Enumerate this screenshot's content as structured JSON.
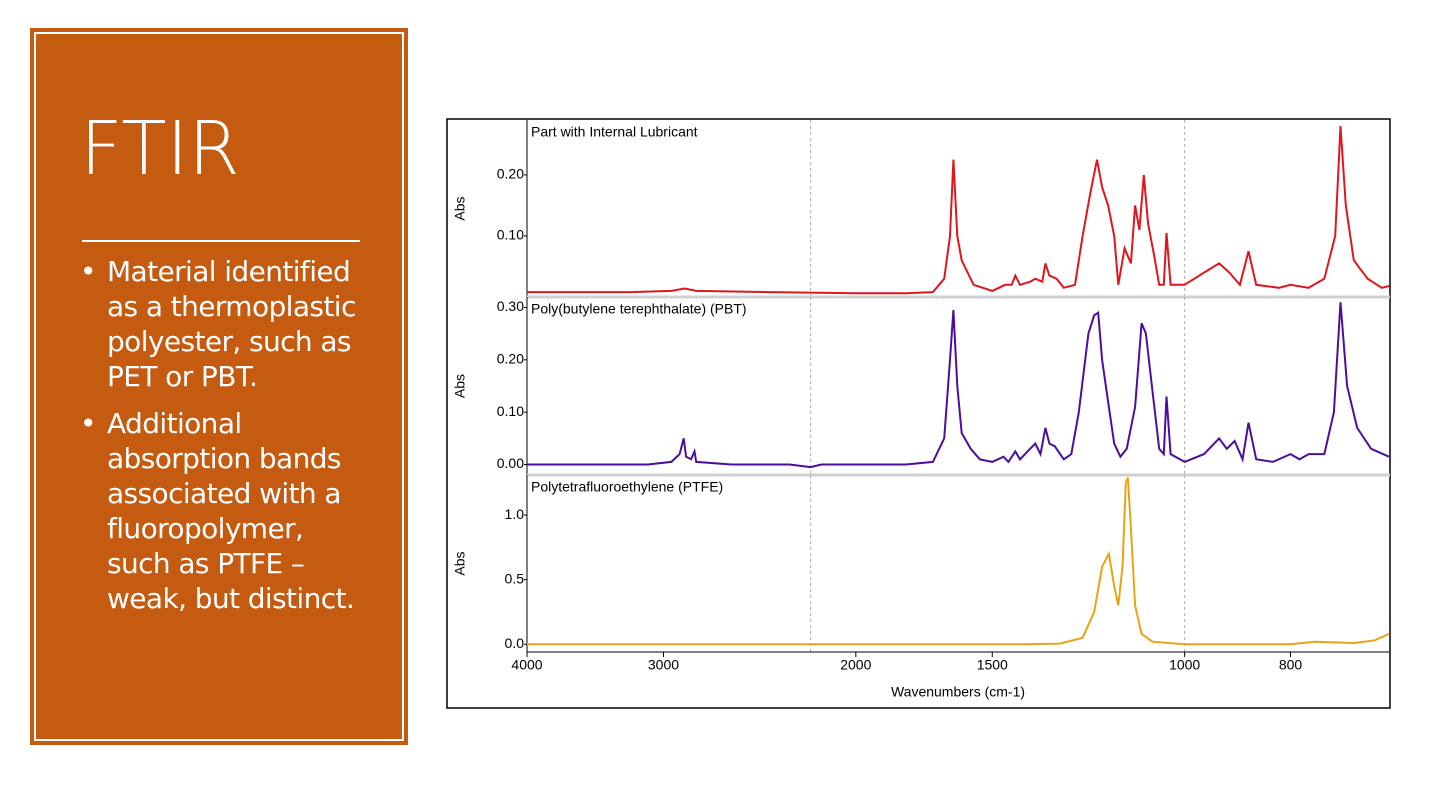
{
  "slide": {
    "title": "FTIR",
    "bullets": [
      "Material identified as a thermoplastic polyester, such as PET or PBT.",
      "Additional absorption bands associated with a fluoropolymer, such as PTFE – weak, but distinct."
    ]
  },
  "chart_data": [
    {
      "type": "line",
      "title": "Part with Internal Lubricant",
      "ylabel": "Abs",
      "xscale": "log",
      "xlim": [
        4000,
        650
      ],
      "ylim": [
        0,
        0.29
      ],
      "yticks": [
        {
          "value": 0.1,
          "label": "0.10"
        },
        {
          "value": 0.2,
          "label": "0.20"
        }
      ],
      "vlines": [
        2200,
        1000
      ],
      "x": [
        4000,
        3200,
        2950,
        2869,
        2800,
        2400,
        2000,
        1800,
        1700,
        1660,
        1640,
        1628,
        1615,
        1600,
        1580,
        1560,
        1500,
        1460,
        1440,
        1429,
        1415,
        1385,
        1370,
        1350,
        1341,
        1330,
        1310,
        1290,
        1260,
        1240,
        1220,
        1203,
        1190,
        1175,
        1160,
        1150,
        1135,
        1120,
        1110,
        1100,
        1090,
        1080,
        1067,
        1055,
        1045,
        1039,
        1030,
        1000,
        960,
        930,
        910,
        890,
        874,
        860,
        820,
        800,
        770,
        745,
        728,
        720,
        712,
        700,
        680,
        660,
        650
      ],
      "series": [
        {
          "color": "#e0161d",
          "values": [
            0.008,
            0.008,
            0.01,
            0.014,
            0.01,
            0.008,
            0.006,
            0.006,
            0.008,
            0.03,
            0.1,
            0.225,
            0.1,
            0.06,
            0.04,
            0.02,
            0.01,
            0.02,
            0.02,
            0.035,
            0.02,
            0.025,
            0.03,
            0.025,
            0.055,
            0.035,
            0.03,
            0.015,
            0.02,
            0.1,
            0.17,
            0.225,
            0.18,
            0.15,
            0.1,
            0.02,
            0.08,
            0.055,
            0.15,
            0.11,
            0.2,
            0.12,
            0.07,
            0.02,
            0.02,
            0.105,
            0.02,
            0.02,
            0.04,
            0.055,
            0.04,
            0.02,
            0.075,
            0.02,
            0.015,
            0.02,
            0.015,
            0.03,
            0.1,
            0.28,
            0.15,
            0.06,
            0.03,
            0.015,
            0.018
          ]
        }
      ]
    },
    {
      "type": "line",
      "title": "Poly(butylene terephthalate) (PBT)",
      "ylabel": "Abs",
      "xscale": "log",
      "xlim": [
        4000,
        650
      ],
      "ylim": [
        -0.02,
        0.32
      ],
      "yticks": [
        {
          "value": 0,
          "label": "0.00"
        },
        {
          "value": 0.1,
          "label": "0.10"
        },
        {
          "value": 0.2,
          "label": "0.20"
        },
        {
          "value": 0.3,
          "label": "0.30"
        }
      ],
      "vlines": [
        2200,
        1000
      ],
      "x": [
        4000,
        3100,
        2950,
        2900,
        2875,
        2860,
        2830,
        2810,
        2800,
        2600,
        2300,
        2200,
        2150,
        1800,
        1700,
        1660,
        1640,
        1628,
        1615,
        1600,
        1570,
        1540,
        1500,
        1465,
        1450,
        1429,
        1415,
        1385,
        1370,
        1355,
        1341,
        1330,
        1315,
        1290,
        1270,
        1250,
        1225,
        1210,
        1200,
        1190,
        1175,
        1160,
        1145,
        1130,
        1110,
        1095,
        1085,
        1070,
        1055,
        1045,
        1039,
        1030,
        1000,
        960,
        930,
        915,
        900,
        885,
        874,
        860,
        830,
        800,
        785,
        770,
        745,
        730,
        720,
        710,
        695,
        675,
        650
      ],
      "series": [
        {
          "color": "#4b0f9c",
          "values": [
            0,
            0,
            0.005,
            0.02,
            0.05,
            0.015,
            0.01,
            0.025,
            0.005,
            0,
            0,
            -0.005,
            0,
            0,
            0.005,
            0.05,
            0.2,
            0.295,
            0.15,
            0.06,
            0.03,
            0.01,
            0.005,
            0.015,
            0.005,
            0.025,
            0.01,
            0.03,
            0.04,
            0.02,
            0.07,
            0.04,
            0.035,
            0.01,
            0.02,
            0.1,
            0.25,
            0.285,
            0.29,
            0.2,
            0.12,
            0.04,
            0.015,
            0.03,
            0.11,
            0.27,
            0.25,
            0.14,
            0.03,
            0.02,
            0.13,
            0.02,
            0.005,
            0.02,
            0.05,
            0.03,
            0.045,
            0.01,
            0.08,
            0.01,
            0.005,
            0.02,
            0.01,
            0.02,
            0.02,
            0.1,
            0.31,
            0.15,
            0.07,
            0.03,
            0.015
          ]
        }
      ]
    },
    {
      "type": "line",
      "title": "Polytetrafluoroethylene (PTFE)",
      "ylabel": "Abs",
      "xlabel": "Wavenumbers (cm-1)",
      "xscale": "log",
      "xlim": [
        4000,
        650
      ],
      "ylim": [
        -0.06,
        1.31
      ],
      "yticks": [
        {
          "value": 0,
          "label": "0.0"
        },
        {
          "value": 0.5,
          "label": "0.5"
        },
        {
          "value": 1,
          "label": "1.0"
        }
      ],
      "xticks": [
        4000,
        3000,
        2000,
        1500,
        1000,
        800
      ],
      "vlines": [
        2200,
        1000
      ],
      "x": [
        4000,
        1400,
        1300,
        1240,
        1210,
        1190,
        1173,
        1160,
        1150,
        1140,
        1132,
        1127,
        1120,
        1110,
        1095,
        1070,
        1000,
        800,
        760,
        700,
        670,
        650
      ],
      "series": [
        {
          "color": "#e8a317",
          "values": [
            0,
            0,
            0.005,
            0.05,
            0.25,
            0.6,
            0.7,
            0.45,
            0.3,
            0.6,
            1.25,
            1.29,
            0.9,
            0.3,
            0.08,
            0.02,
            0,
            0,
            0.02,
            0.01,
            0.03,
            0.08
          ]
        }
      ]
    }
  ]
}
